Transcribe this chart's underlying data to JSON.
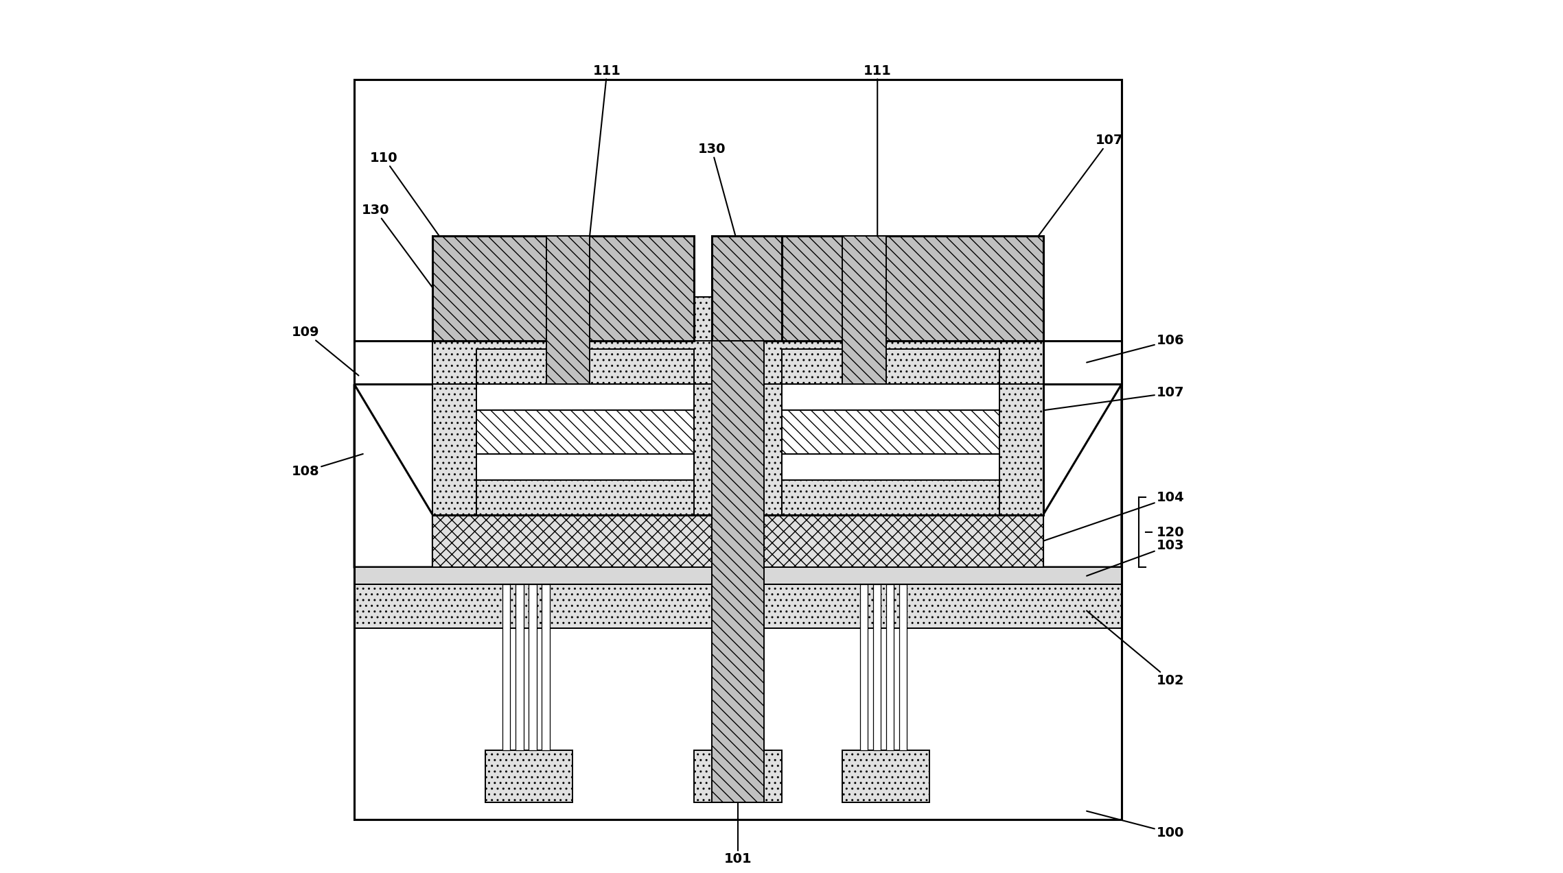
{
  "fig_width": 22.77,
  "fig_height": 12.73,
  "dpi": 100,
  "bg_color": "#ffffff",
  "lw_main": 2.2,
  "lw_thin": 1.4,
  "font_size": 14,
  "font_weight": "bold"
}
